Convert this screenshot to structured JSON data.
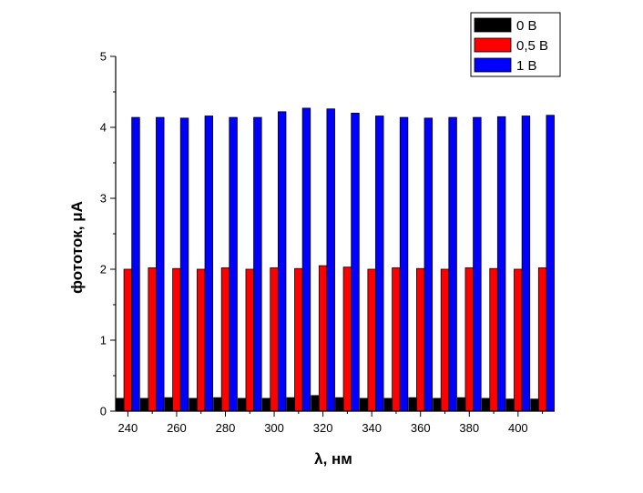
{
  "chart_data": {
    "type": "bar",
    "xlabel": "λ, нм",
    "ylabel": "фототок, μA",
    "ylim": [
      0,
      5
    ],
    "xlim": [
      235,
      415
    ],
    "x_ticks": [
      240,
      260,
      280,
      300,
      320,
      340,
      360,
      380,
      400
    ],
    "y_ticks": [
      0,
      1,
      2,
      3,
      4,
      5
    ],
    "grid": false,
    "legend_position": "top-right",
    "x": [
      240,
      250,
      260,
      270,
      280,
      290,
      300,
      310,
      320,
      330,
      340,
      350,
      360,
      370,
      380,
      390,
      400,
      410
    ],
    "series": [
      {
        "name": "0 В",
        "color": "#000000",
        "values": [
          0.18,
          0.18,
          0.19,
          0.18,
          0.19,
          0.18,
          0.18,
          0.19,
          0.22,
          0.19,
          0.18,
          0.18,
          0.19,
          0.18,
          0.19,
          0.18,
          0.17,
          0.17
        ]
      },
      {
        "name": "0,5 В",
        "color": "#ff0000",
        "values": [
          2.0,
          2.02,
          2.01,
          2.0,
          2.02,
          2.0,
          2.02,
          2.01,
          2.05,
          2.03,
          2.0,
          2.02,
          2.01,
          2.0,
          2.02,
          2.01,
          2.0,
          2.02
        ]
      },
      {
        "name": "1 В",
        "color": "#0000ff",
        "values": [
          4.14,
          4.14,
          4.13,
          4.16,
          4.14,
          4.14,
          4.22,
          4.27,
          4.26,
          4.2,
          4.16,
          4.14,
          4.13,
          4.14,
          4.14,
          4.15,
          4.16,
          4.17
        ]
      }
    ]
  }
}
